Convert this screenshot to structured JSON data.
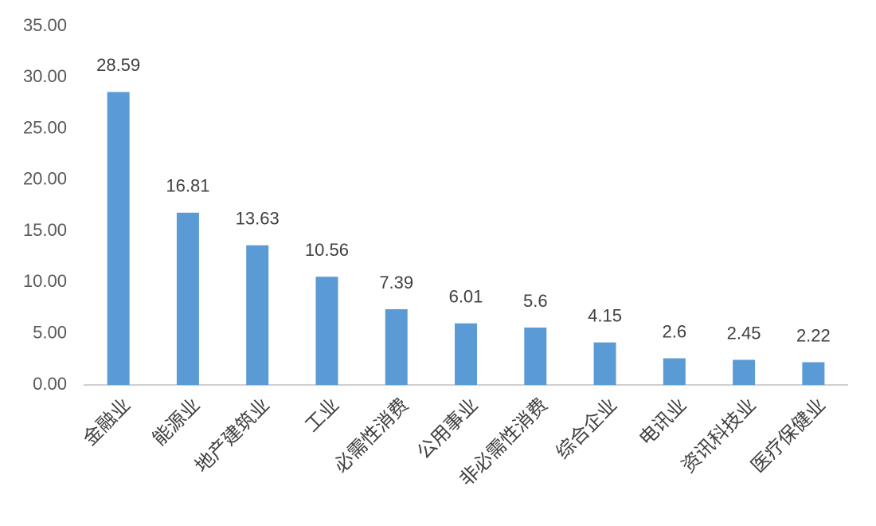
{
  "chart_data": {
    "type": "bar",
    "categories": [
      "金融业",
      "能源业",
      "地产建筑业",
      "工业",
      "必需性消费",
      "公用事业",
      "非必需性消费",
      "综合企业",
      "电讯业",
      "资讯科技业",
      "医疗保健业"
    ],
    "values": [
      28.59,
      16.81,
      13.63,
      10.56,
      7.39,
      6.01,
      5.6,
      4.15,
      2.6,
      2.45,
      2.22
    ],
    "color": "#5b9bd5",
    "ylim": [
      0,
      35
    ],
    "yticks": [
      {
        "value": 0,
        "label": "0.00"
      },
      {
        "value": 5,
        "label": "5.00"
      },
      {
        "value": 10,
        "label": "10.00"
      },
      {
        "value": 15,
        "label": "15.00"
      },
      {
        "value": 20,
        "label": "20.00"
      },
      {
        "value": 25,
        "label": "25.00"
      },
      {
        "value": 30,
        "label": "30.00"
      },
      {
        "value": 35,
        "label": "35.00"
      }
    ],
    "grid": false
  }
}
